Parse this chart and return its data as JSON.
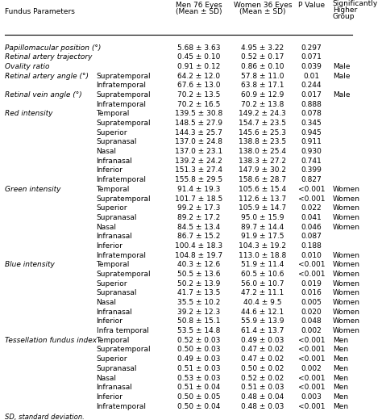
{
  "title_line1": "Significantly",
  "title_line2": "Higher",
  "title_line3": "Group",
  "col_headers": [
    "Fundus Parameters",
    "",
    "Men 76 Eyes\n(Mean ± SD)",
    "Women 36 Eyes\n(Mean ± SD)",
    "P Value",
    "Significantly\nHigher\nGroup"
  ],
  "rows": [
    [
      "Papillomacular position (°)",
      "",
      "5.68 ± 3.63",
      "4.95 ± 3.22",
      "0.297",
      ""
    ],
    [
      "Retinal artery trajectory",
      "",
      "0.45 ± 0.10",
      "0.52 ± 0.17",
      "0.071",
      ""
    ],
    [
      "Ovality ratio",
      "",
      "0.91 ± 0.12",
      "0.86 ± 0.10",
      "0.039",
      "Male"
    ],
    [
      "Retinal artery angle (°)",
      "Supratemporal",
      "64.2 ± 12.0",
      "57.8 ± 11.0",
      "0.01",
      "Male"
    ],
    [
      "",
      "Infratemporal",
      "67.6 ± 13.0",
      "63.8 ± 17.1",
      "0.244",
      ""
    ],
    [
      "Retinal vein angle (°)",
      "Supratemporal",
      "70.2 ± 13.5",
      "60.9 ± 12.9",
      "0.017",
      "Male"
    ],
    [
      "",
      "Infratemporal",
      "70.2 ± 16.5",
      "70.2 ± 13.8",
      "0.888",
      ""
    ],
    [
      "Red intensity",
      "Temporal",
      "139.5 ± 30.8",
      "149.2 ± 24.3",
      "0.078",
      ""
    ],
    [
      "",
      "Supratemporal",
      "148.5 ± 27.9",
      "154.7 ± 23.5",
      "0.345",
      ""
    ],
    [
      "",
      "Superior",
      "144.3 ± 25.7",
      "145.6 ± 25.3",
      "0.945",
      ""
    ],
    [
      "",
      "Supranasal",
      "137.0 ± 24.8",
      "138.8 ± 23.5",
      "0.911",
      ""
    ],
    [
      "",
      "Nasal",
      "137.0 ± 23.1",
      "138.0 ± 25.4",
      "0.930",
      ""
    ],
    [
      "",
      "Infranasal",
      "139.2 ± 24.2",
      "138.3 ± 27.2",
      "0.741",
      ""
    ],
    [
      "",
      "Inferior",
      "151.3 ± 27.4",
      "147.9 ± 30.2",
      "0.399",
      ""
    ],
    [
      "",
      "Infratemporal",
      "155.8 ± 29.5",
      "158.6 ± 28.7",
      "0.827",
      ""
    ],
    [
      "Green intensity",
      "Temporal",
      "91.4 ± 19.3",
      "105.6 ± 15.4",
      "<0.001",
      "Women"
    ],
    [
      "",
      "Supratemporal",
      "101.7 ± 18.5",
      "112.6 ± 13.7",
      "<0.001",
      "Women"
    ],
    [
      "",
      "Superior",
      "99.2 ± 17.3",
      "105.9 ± 14.7",
      "0.022",
      "Women"
    ],
    [
      "",
      "Supranasal",
      "89.2 ± 17.2",
      "95.0 ± 15.9",
      "0.041",
      "Women"
    ],
    [
      "",
      "Nasal",
      "84.5 ± 13.4",
      "89.7 ± 14.4",
      "0.046",
      "Women"
    ],
    [
      "",
      "Infranasal",
      "86.7 ± 15.2",
      "91.9 ± 17.5",
      "0.087",
      ""
    ],
    [
      "",
      "Inferior",
      "100.4 ± 18.3",
      "104.3 ± 19.2",
      "0.188",
      ""
    ],
    [
      "",
      "Infratemporal",
      "104.8 ± 19.7",
      "113.0 ± 18.8",
      "0.010",
      "Women"
    ],
    [
      "Blue intensity",
      "Temporal",
      "40.3 ± 12.6",
      "51.9 ± 11.4",
      "<0.001",
      "Women"
    ],
    [
      "",
      "Supratemporal",
      "50.5 ± 13.6",
      "60.5 ± 10.6",
      "<0.001",
      "Women"
    ],
    [
      "",
      "Superior",
      "50.2 ± 13.9",
      "56.0 ± 10.7",
      "0.019",
      "Women"
    ],
    [
      "",
      "Supranasal",
      "41.7 ± 13.5",
      "47.2 ± 11.1",
      "0.016",
      "Women"
    ],
    [
      "",
      "Nasal",
      "35.5 ± 10.2",
      "40.4 ± 9.5",
      "0.005",
      "Women"
    ],
    [
      "",
      "Infranasal",
      "39.2 ± 12.3",
      "44.6 ± 12.1",
      "0.020",
      "Women"
    ],
    [
      "",
      "Inferior",
      "50.8 ± 15.1",
      "55.9 ± 13.9",
      "0.048",
      "Women"
    ],
    [
      "",
      "Infra temporal",
      "53.5 ± 14.8",
      "61.4 ± 13.7",
      "0.002",
      "Women"
    ],
    [
      "Tessellation fundus index",
      "Temporal",
      "0.52 ± 0.03",
      "0.49 ± 0.03",
      "<0.001",
      "Men"
    ],
    [
      "",
      "Supratemporal",
      "0.50 ± 0.03",
      "0.47 ± 0.02",
      "<0.001",
      "Men"
    ],
    [
      "",
      "Superior",
      "0.49 ± 0.03",
      "0.47 ± 0.02",
      "<0.001",
      "Men"
    ],
    [
      "",
      "Supranasal",
      "0.51 ± 0.03",
      "0.50 ± 0.02",
      "0.002",
      "Men"
    ],
    [
      "",
      "Nasal",
      "0.53 ± 0.03",
      "0.52 ± 0.02",
      "<0.001",
      "Men"
    ],
    [
      "",
      "Infranasal",
      "0.51 ± 0.04",
      "0.51 ± 0.03",
      "<0.001",
      "Men"
    ],
    [
      "",
      "Inferior",
      "0.50 ± 0.05",
      "0.48 ± 0.04",
      "0.003",
      "Men"
    ],
    [
      "",
      "Infratemporal",
      "0.50 ± 0.04",
      "0.48 ± 0.03",
      "<0.001",
      "Men"
    ]
  ],
  "footer": "SD, standard deviation.",
  "bg_color": "#ffffff",
  "text_color": "#000000",
  "header_bold": true
}
